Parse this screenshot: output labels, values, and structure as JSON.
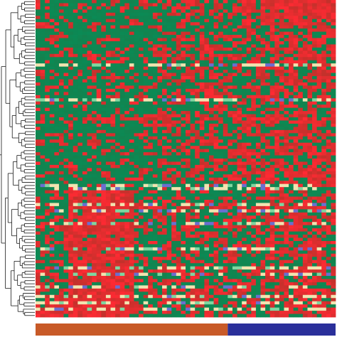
{
  "chart_data": {
    "type": "heatmap",
    "title": "",
    "xlabel": "",
    "ylabel": "",
    "n_rows": 100,
    "n_columns": 64,
    "color_scale": {
      "low": "#0b8a55",
      "mid": "#1f7f4a",
      "high": "#ff2a33",
      "highlight": "#f2e3b0",
      "accent": "#6a6fd0"
    },
    "groups": [
      {
        "columns": 41,
        "color": "#c85a28"
      },
      {
        "columns": 23,
        "color": "#2a2f9a"
      }
    ],
    "row_dendrogram": true,
    "legend": "none",
    "grid": false
  }
}
